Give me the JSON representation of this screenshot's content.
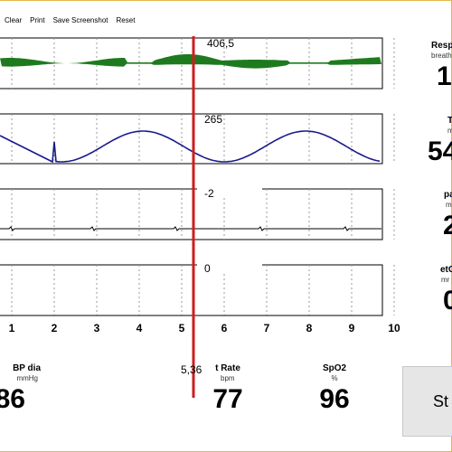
{
  "menu": [
    "Clear",
    "Print",
    "Save Screenshot",
    "Reset"
  ],
  "channels": [
    {
      "marker_value": "406,5"
    },
    {
      "marker_value": "265"
    },
    {
      "marker_value": "-2"
    },
    {
      "marker_value": "0"
    }
  ],
  "x_axis": {
    "ticks": [
      "1",
      "2",
      "3",
      "4",
      "5",
      "6",
      "7",
      "8",
      "9",
      "10"
    ]
  },
  "cursor": {
    "value": "5,36",
    "color": "#cc1f1f"
  },
  "trace_colors": {
    "respiration": "#1e7a1e",
    "pressure": "#1a1a8c",
    "ecg": "#000000"
  },
  "bottom_vitals": [
    {
      "label": "BP dia",
      "unit": "mmHg",
      "value": "86"
    },
    {
      "label": "t Rate",
      "unit": "bpm",
      "value": "77"
    },
    {
      "label": "SpO2",
      "unit": "%",
      "value": "96"
    }
  ],
  "side_vitals": [
    {
      "label": "Resp",
      "unit": "breath",
      "value": "1"
    },
    {
      "label": "T",
      "unit": "m",
      "value": "54"
    },
    {
      "label": "pa",
      "unit": "m",
      "value": "2"
    },
    {
      "label": "etC",
      "unit": "mr",
      "value": "0"
    }
  ],
  "start_button": "St"
}
